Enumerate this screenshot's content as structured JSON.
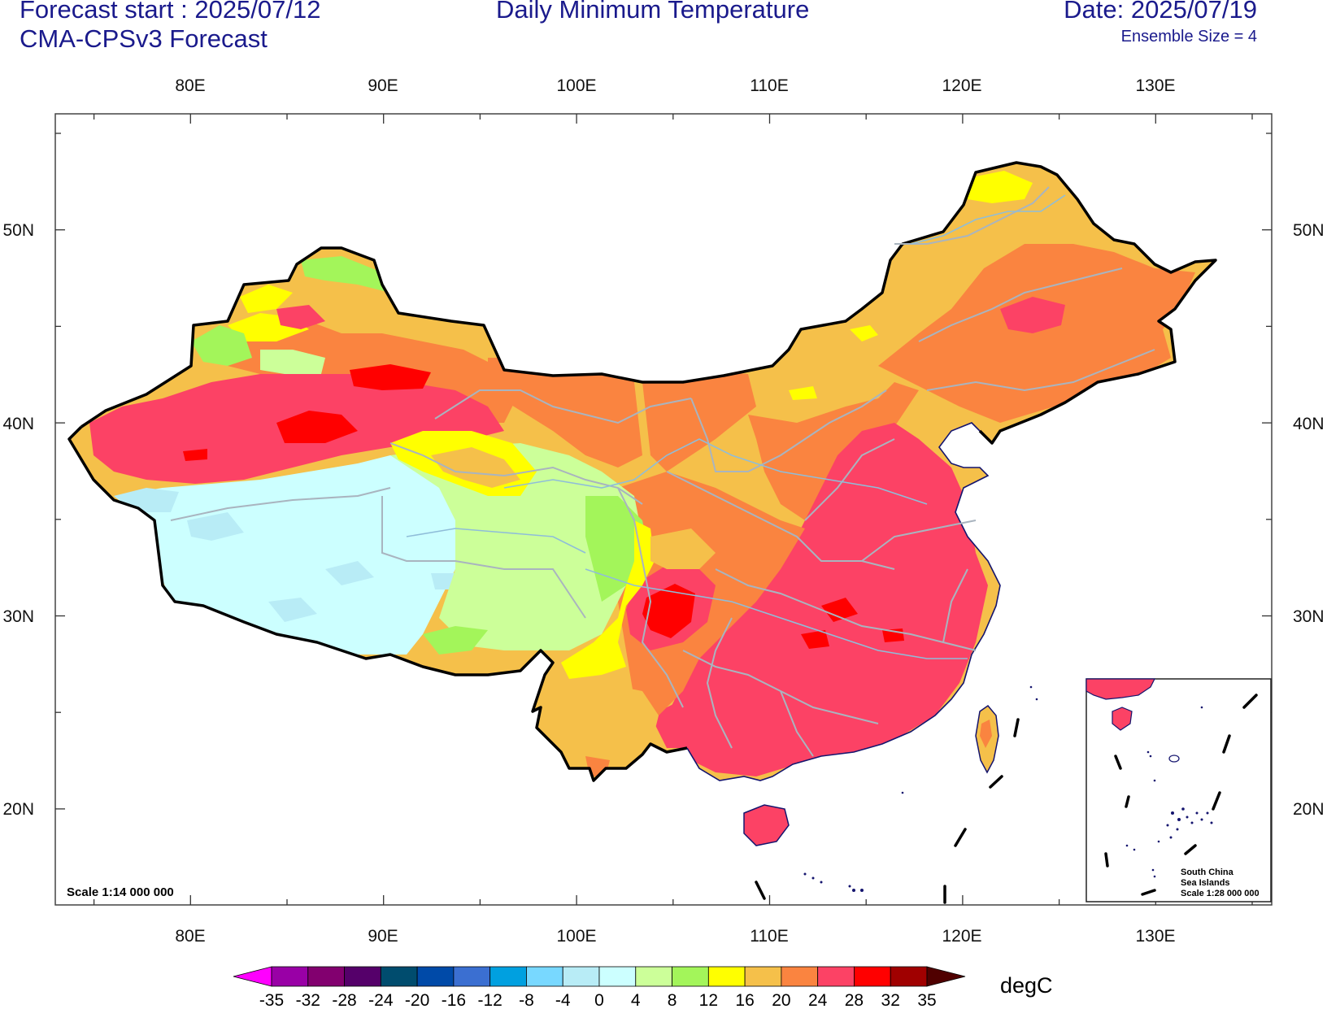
{
  "header": {
    "forecast_start": "Forecast start : 2025/07/12",
    "model": "CMA-CPSv3 Forecast",
    "title": "Daily Minimum Temperature",
    "date": "Date: 2025/07/19",
    "ensemble": "Ensemble Size = 4"
  },
  "map": {
    "lon_ticks": [
      "80E",
      "90E",
      "100E",
      "110E",
      "120E",
      "130E"
    ],
    "lat_ticks": [
      "50N",
      "40N",
      "30N",
      "20N"
    ],
    "scale_label": "Scale 1:14 000 000",
    "inset_labels": [
      "South China",
      "Sea Islands",
      "Scale 1:28 000 000"
    ],
    "regions": [
      {
        "name": "national-base",
        "category": "20-24"
      },
      {
        "name": "northeast-base",
        "category": "20-24"
      },
      {
        "name": "northeast-core",
        "category": "24-28"
      },
      {
        "name": "northeast-warm-spot",
        "category": "28-32"
      },
      {
        "name": "northern-yellow",
        "category": "16-20"
      },
      {
        "name": "inner-mongolia-band",
        "category": "24-28"
      },
      {
        "name": "north-china-plain",
        "category": "28-32"
      },
      {
        "name": "south-china",
        "category": "28-32"
      },
      {
        "name": "south-china-hot-spots",
        "category": "32-35"
      },
      {
        "name": "sichuan-basin",
        "category": "32-35"
      },
      {
        "name": "yunnan",
        "category": "20-24"
      },
      {
        "name": "xinjiang-north",
        "category": "24-28"
      },
      {
        "name": "tarim-basin",
        "category": "28-32"
      },
      {
        "name": "tarim-hot-cores",
        "category": "32-35"
      },
      {
        "name": "tibetan-plateau",
        "category": "0-4"
      },
      {
        "name": "qinghai",
        "category": "4-8"
      },
      {
        "name": "qaidam-basin",
        "category": "16-20"
      },
      {
        "name": "plateau-edge",
        "category": "8-12"
      },
      {
        "name": "taiwan",
        "category": "20-24"
      },
      {
        "name": "hainan",
        "category": "28-32"
      }
    ]
  },
  "colorbar": {
    "labels": [
      "-35",
      "-32",
      "-28",
      "-24",
      "-20",
      "-16",
      "-12",
      "-8",
      "-4",
      "0",
      "4",
      "8",
      "12",
      "16",
      "20",
      "24",
      "28",
      "32",
      "35"
    ],
    "colors": [
      "#ff00ff",
      "#9900a6",
      "#82006f",
      "#55006a",
      "#004c6e",
      "#004aa8",
      "#3b6fd1",
      "#00a0e0",
      "#78d8ff",
      "#b8ecf6",
      "#ccffff",
      "#ccff99",
      "#a3f55a",
      "#ffff00",
      "#f5c04a",
      "#fa8440",
      "#fc4265",
      "#ff0000",
      "#a00000",
      "#500000"
    ],
    "unit": "degC"
  }
}
